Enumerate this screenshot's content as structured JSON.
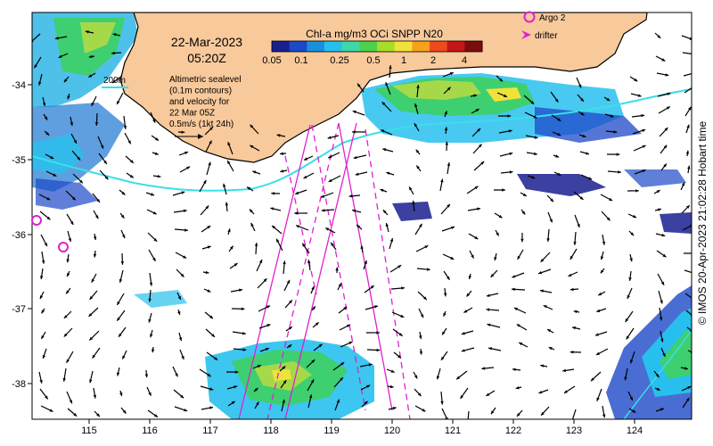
{
  "title": {
    "date": "22-Mar-2023",
    "time": "05:20Z"
  },
  "colorbar": {
    "title": "Chl-a mg/m3 OCi SNPP N20",
    "ticks": [
      "0.05",
      "0.1",
      "0.25",
      "0.5",
      "1",
      "2",
      "4"
    ],
    "colors": [
      "#1a1f8f",
      "#1d48c8",
      "#1a8fe0",
      "#27c0ee",
      "#3fd8a8",
      "#4cd24a",
      "#a8dc2a",
      "#f0e23a",
      "#f6a11e",
      "#ee4a1c",
      "#c41616",
      "#7c0d0d"
    ]
  },
  "legend": {
    "isobath_label": "200m",
    "description_lines": [
      "Altimetric sealevel",
      "(0.1m contours)",
      "and velocity for",
      "22 Mar 05Z",
      "0.5m/s (1kt 24h)"
    ],
    "argo_label": "Argo 2",
    "drifter_label": "drifter"
  },
  "axes": {
    "x_ticks": [
      "115",
      "116",
      "117",
      "118",
      "119",
      "120",
      "121",
      "122",
      "123",
      "124"
    ],
    "y_ticks": [
      "-34",
      "-35",
      "-36",
      "-37",
      "-38"
    ]
  },
  "credit": "© IMOS 20-Apr-2023 21:02:28 Hobart time",
  "colors": {
    "land": "#f8c99b",
    "isobath": "#38e0e8",
    "track": "#e020d0",
    "argo": "#e020d0",
    "vector": "#000000"
  }
}
